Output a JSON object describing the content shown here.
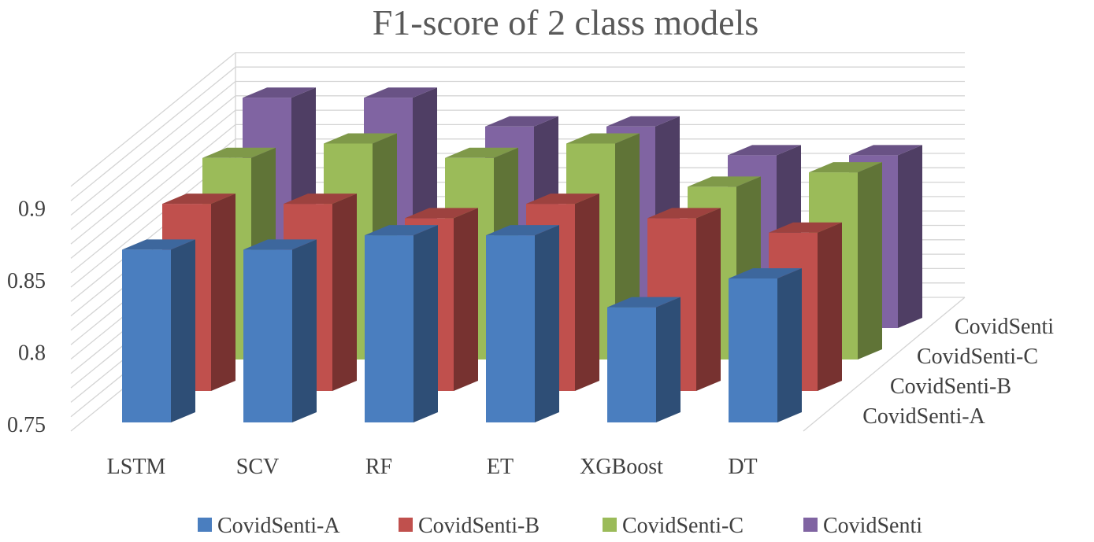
{
  "chart_data": {
    "type": "bar",
    "subtype": "3d-clustered-column",
    "title": "F1-score of 2 class models",
    "categories": [
      "LSTM",
      "SCV",
      "RF",
      "ET",
      "XGBoost",
      "DT"
    ],
    "series": [
      {
        "name": "CovidSenti-A",
        "color": "#4a7ebf",
        "values": [
          0.87,
          0.87,
          0.88,
          0.88,
          0.83,
          0.85
        ]
      },
      {
        "name": "CovidSenti-B",
        "color": "#c0504d",
        "values": [
          0.88,
          0.88,
          0.87,
          0.88,
          0.87,
          0.86
        ]
      },
      {
        "name": "CovidSenti-C",
        "color": "#9bbb59",
        "values": [
          0.89,
          0.9,
          0.89,
          0.9,
          0.87,
          0.88
        ]
      },
      {
        "name": "CovidSenti",
        "color": "#8064a2",
        "values": [
          0.91,
          0.91,
          0.89,
          0.89,
          0.87,
          0.87
        ]
      }
    ],
    "yticks": [
      "0.75",
      "0.8",
      "0.85",
      "0.9"
    ],
    "ylim": [
      0.75,
      0.92
    ],
    "depth_labels": [
      "CovidSenti-A",
      "CovidSenti-B",
      "CovidSenti-C",
      "CovidSenti"
    ],
    "legend_position": "bottom",
    "xlabel": "",
    "ylabel": ""
  }
}
